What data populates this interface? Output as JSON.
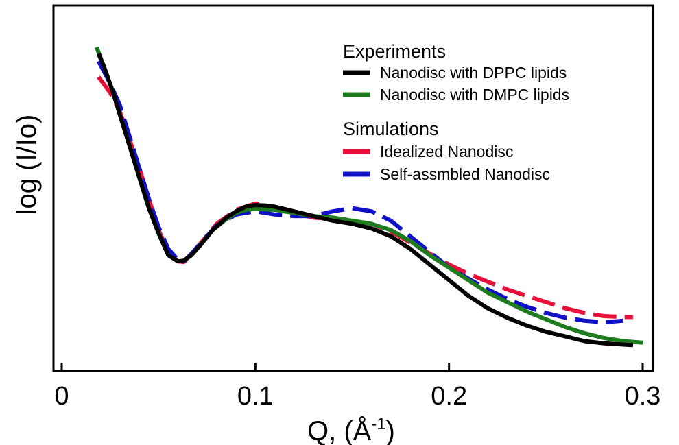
{
  "chart_data": {
    "type": "line",
    "xlabel_main": "Q, (Å",
    "xlabel_sup": "-1",
    "xlabel_end": ")",
    "ylabel": "log (I/Io)",
    "xlim": [
      0,
      0.3
    ],
    "ylim": [
      0,
      1
    ],
    "xticks": [
      0,
      0.1,
      0.2,
      0.3
    ],
    "xtick_labels": [
      "0",
      "0.1",
      "0.2",
      "0.3"
    ],
    "y_tick_labels_shown": false,
    "grid": false,
    "legend_placement": "top-right",
    "legend_groups": [
      {
        "title": "Experiments",
        "entries": [
          "Nanodisc with DPPC lipids",
          "Nanodisc with DMPC lipids"
        ]
      },
      {
        "title": "Simulations",
        "entries": [
          "Idealized Nanodisc",
          "Self-assmbled Nanodisc"
        ]
      }
    ],
    "series": [
      {
        "name": "Nanodisc with DPPC lipids",
        "color": "#000000",
        "dash": "solid",
        "points": [
          [
            0.019,
            0.965
          ],
          [
            0.022,
            0.92
          ],
          [
            0.026,
            0.85
          ],
          [
            0.03,
            0.77
          ],
          [
            0.035,
            0.67
          ],
          [
            0.04,
            0.57
          ],
          [
            0.045,
            0.47
          ],
          [
            0.05,
            0.39
          ],
          [
            0.055,
            0.32
          ],
          [
            0.06,
            0.3
          ],
          [
            0.063,
            0.302
          ],
          [
            0.067,
            0.32
          ],
          [
            0.072,
            0.355
          ],
          [
            0.078,
            0.4
          ],
          [
            0.085,
            0.44
          ],
          [
            0.09,
            0.46
          ],
          [
            0.095,
            0.475
          ],
          [
            0.1,
            0.48
          ],
          [
            0.105,
            0.479
          ],
          [
            0.11,
            0.475
          ],
          [
            0.12,
            0.46
          ],
          [
            0.13,
            0.445
          ],
          [
            0.14,
            0.43
          ],
          [
            0.15,
            0.42
          ],
          [
            0.16,
            0.405
          ],
          [
            0.17,
            0.38
          ],
          [
            0.18,
            0.34
          ],
          [
            0.19,
            0.29
          ],
          [
            0.2,
            0.24
          ],
          [
            0.21,
            0.19
          ],
          [
            0.22,
            0.15
          ],
          [
            0.23,
            0.12
          ],
          [
            0.24,
            0.095
          ],
          [
            0.25,
            0.075
          ],
          [
            0.26,
            0.06
          ],
          [
            0.27,
            0.045
          ],
          [
            0.28,
            0.038
          ],
          [
            0.29,
            0.034
          ],
          [
            0.295,
            0.032
          ]
        ]
      },
      {
        "name": "Nanodisc with DMPC lipids",
        "color": "#1e7b1e",
        "dash": "solid",
        "points": [
          [
            0.018,
            0.985
          ],
          [
            0.022,
            0.92
          ],
          [
            0.026,
            0.85
          ],
          [
            0.03,
            0.77
          ],
          [
            0.035,
            0.67
          ],
          [
            0.04,
            0.57
          ],
          [
            0.045,
            0.47
          ],
          [
            0.05,
            0.39
          ],
          [
            0.055,
            0.32
          ],
          [
            0.06,
            0.3
          ],
          [
            0.063,
            0.302
          ],
          [
            0.067,
            0.32
          ],
          [
            0.072,
            0.355
          ],
          [
            0.078,
            0.4
          ],
          [
            0.085,
            0.435
          ],
          [
            0.09,
            0.455
          ],
          [
            0.095,
            0.465
          ],
          [
            0.1,
            0.468
          ],
          [
            0.11,
            0.465
          ],
          [
            0.12,
            0.455
          ],
          [
            0.13,
            0.445
          ],
          [
            0.14,
            0.44
          ],
          [
            0.15,
            0.43
          ],
          [
            0.16,
            0.42
          ],
          [
            0.17,
            0.4
          ],
          [
            0.18,
            0.365
          ],
          [
            0.19,
            0.32
          ],
          [
            0.2,
            0.28
          ],
          [
            0.21,
            0.24
          ],
          [
            0.22,
            0.2
          ],
          [
            0.23,
            0.17
          ],
          [
            0.24,
            0.14
          ],
          [
            0.25,
            0.115
          ],
          [
            0.26,
            0.09
          ],
          [
            0.27,
            0.07
          ],
          [
            0.28,
            0.055
          ],
          [
            0.29,
            0.045
          ],
          [
            0.3,
            0.04
          ]
        ]
      },
      {
        "name": "Idealized Nanodisc",
        "color": "#e8103a",
        "dash": "dashed",
        "points": [
          [
            0.019,
            0.89
          ],
          [
            0.025,
            0.84
          ],
          [
            0.03,
            0.78
          ],
          [
            0.035,
            0.69
          ],
          [
            0.04,
            0.6
          ],
          [
            0.045,
            0.5
          ],
          [
            0.05,
            0.4
          ],
          [
            0.055,
            0.33
          ],
          [
            0.06,
            0.3
          ],
          [
            0.063,
            0.298
          ],
          [
            0.067,
            0.32
          ],
          [
            0.072,
            0.36
          ],
          [
            0.08,
            0.42
          ],
          [
            0.09,
            0.465
          ],
          [
            0.1,
            0.485
          ],
          [
            0.11,
            0.47
          ],
          [
            0.12,
            0.455
          ],
          [
            0.13,
            0.44
          ],
          [
            0.14,
            0.435
          ],
          [
            0.15,
            0.43
          ],
          [
            0.16,
            0.42
          ],
          [
            0.17,
            0.395
          ],
          [
            0.18,
            0.36
          ],
          [
            0.19,
            0.325
          ],
          [
            0.2,
            0.29
          ],
          [
            0.21,
            0.26
          ],
          [
            0.22,
            0.235
          ],
          [
            0.23,
            0.21
          ],
          [
            0.24,
            0.19
          ],
          [
            0.25,
            0.17
          ],
          [
            0.26,
            0.15
          ],
          [
            0.27,
            0.135
          ],
          [
            0.28,
            0.125
          ],
          [
            0.29,
            0.122
          ],
          [
            0.295,
            0.122
          ]
        ]
      },
      {
        "name": "Self-assmbled Nanodisc",
        "color": "#1010c8",
        "dash": "dashed",
        "points": [
          [
            0.019,
            0.94
          ],
          [
            0.025,
            0.87
          ],
          [
            0.03,
            0.8
          ],
          [
            0.035,
            0.7
          ],
          [
            0.04,
            0.6
          ],
          [
            0.045,
            0.5
          ],
          [
            0.05,
            0.41
          ],
          [
            0.055,
            0.34
          ],
          [
            0.06,
            0.305
          ],
          [
            0.063,
            0.3
          ],
          [
            0.067,
            0.325
          ],
          [
            0.072,
            0.36
          ],
          [
            0.08,
            0.415
          ],
          [
            0.09,
            0.45
          ],
          [
            0.1,
            0.46
          ],
          [
            0.11,
            0.45
          ],
          [
            0.12,
            0.445
          ],
          [
            0.13,
            0.445
          ],
          [
            0.14,
            0.46
          ],
          [
            0.15,
            0.47
          ],
          [
            0.16,
            0.46
          ],
          [
            0.17,
            0.43
          ],
          [
            0.18,
            0.38
          ],
          [
            0.19,
            0.33
          ],
          [
            0.2,
            0.28
          ],
          [
            0.21,
            0.245
          ],
          [
            0.22,
            0.21
          ],
          [
            0.23,
            0.18
          ],
          [
            0.24,
            0.155
          ],
          [
            0.25,
            0.135
          ],
          [
            0.26,
            0.12
          ],
          [
            0.27,
            0.11
          ],
          [
            0.28,
            0.105
          ],
          [
            0.29,
            0.11
          ]
        ]
      }
    ]
  }
}
